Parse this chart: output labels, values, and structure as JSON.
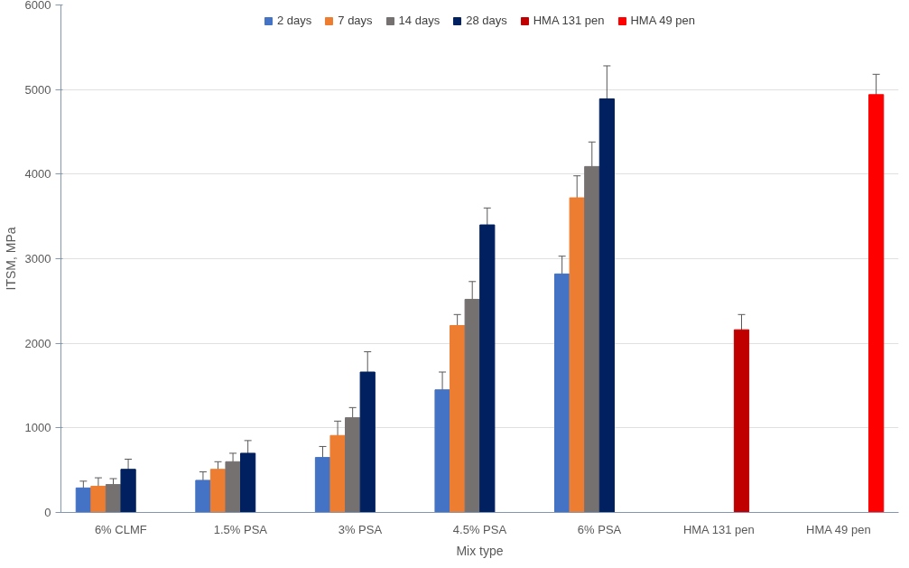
{
  "chart_data": {
    "type": "bar",
    "xlabel": "Mix type",
    "ylabel": "ITSM, MPa",
    "categories": [
      "6% CLMF",
      "1.5% PSA",
      "3% PSA",
      "4.5% PSA",
      "6% PSA",
      "HMA 131 pen",
      "HMA 49 pen"
    ],
    "series": [
      {
        "name": "2 days",
        "color": "#4472c4",
        "values": [
          290,
          380,
          650,
          1450,
          2820,
          null,
          null
        ],
        "errors": [
          80,
          100,
          130,
          210,
          210,
          null,
          null
        ]
      },
      {
        "name": "7 days",
        "color": "#ed7d31",
        "values": [
          310,
          510,
          910,
          2210,
          3720,
          null,
          null
        ],
        "errors": [
          100,
          90,
          170,
          130,
          260,
          null,
          null
        ]
      },
      {
        "name": "14 days",
        "color": "#767171",
        "values": [
          330,
          600,
          1120,
          2520,
          4090,
          null,
          null
        ],
        "errors": [
          70,
          100,
          120,
          210,
          290,
          null,
          null
        ]
      },
      {
        "name": "28 days",
        "color": "#002060",
        "values": [
          510,
          700,
          1660,
          3400,
          4890,
          null,
          null
        ],
        "errors": [
          120,
          150,
          240,
          200,
          390,
          null,
          null
        ]
      },
      {
        "name": "HMA 131 pen",
        "color": "#c00000",
        "values": [
          null,
          null,
          null,
          null,
          null,
          2160,
          null
        ],
        "errors": [
          null,
          null,
          null,
          null,
          null,
          180,
          null
        ]
      },
      {
        "name": "HMA 49 pen",
        "color": "#ff0000",
        "values": [
          null,
          null,
          null,
          null,
          null,
          null,
          4940
        ],
        "errors": [
          null,
          null,
          null,
          null,
          null,
          null,
          240
        ]
      }
    ],
    "ylim": [
      0,
      6000
    ],
    "yticks": [
      0,
      1000,
      2000,
      3000,
      4000,
      5000,
      6000
    ],
    "grid": "y",
    "legend": "top"
  }
}
